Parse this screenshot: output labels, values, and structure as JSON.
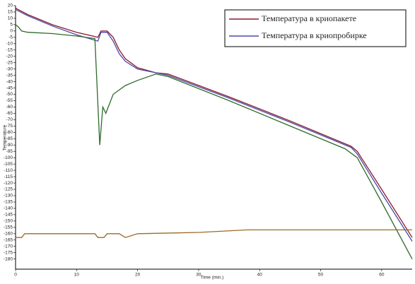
{
  "chart_data": {
    "type": "line",
    "x_label": "Time (min.)",
    "y_label": "Temperature",
    "xlim": [
      0,
      65
    ],
    "xticks": [
      0,
      10,
      20,
      30,
      40,
      50,
      60
    ],
    "ylim": [
      -188,
      20
    ],
    "yticks": [
      20,
      15,
      10,
      5,
      0,
      -5,
      -10,
      -15,
      -20,
      -25,
      -30,
      -35,
      -40,
      -45,
      -50,
      -55,
      -60,
      -65,
      -70,
      -75,
      -80,
      -85,
      -90,
      -95,
      -100,
      -105,
      -110,
      -115,
      -120,
      -125,
      -130,
      -135,
      -140,
      -145,
      -150,
      -155,
      -160,
      -165,
      -170,
      -175,
      -180
    ],
    "legend": "upper right",
    "series": [
      {
        "name": "Температура в криопакете",
        "color": "#8b1a2e",
        "x": [
          0,
          2,
          6,
          10,
          13.5,
          14,
          15,
          16,
          17,
          18,
          20,
          23,
          25,
          35,
          45,
          55,
          56,
          60,
          65
        ],
        "values": [
          18,
          13,
          5,
          -1,
          -5,
          0,
          0,
          -5,
          -15,
          -22,
          -29,
          -33,
          -34,
          -52,
          -71,
          -91,
          -95,
          -125,
          -163
        ]
      },
      {
        "name": "Температура в криопробирке",
        "color": "#4a4aa8",
        "x": [
          0,
          2,
          6,
          10,
          13.5,
          14,
          15,
          16,
          17,
          18,
          20,
          23,
          25,
          35,
          45,
          55,
          56,
          60,
          65
        ],
        "values": [
          17,
          12,
          4,
          -3,
          -8,
          -1,
          -1,
          -8,
          -18,
          -24,
          -30,
          -33,
          -35,
          -53,
          -72,
          -92,
          -97,
          -128,
          -166
        ]
      },
      {
        "color": "#2e6b2a",
        "x": [
          0,
          0.5,
          1,
          2,
          6,
          10,
          13,
          13.8,
          14.3,
          14.8,
          16,
          18,
          20,
          23,
          25,
          35,
          45,
          54,
          56,
          60,
          65
        ],
        "values": [
          5,
          3,
          0,
          -1,
          -2,
          -4,
          -6,
          -90,
          -60,
          -65,
          -50,
          -43,
          -39,
          -34,
          -36,
          -55,
          -75,
          -93,
          -100,
          -135,
          -180
        ]
      },
      {
        "color": "#9a6a2a",
        "x": [
          0,
          1,
          1.5,
          5,
          13,
          13.5,
          14.5,
          15,
          17,
          18,
          20,
          30,
          38,
          40,
          50,
          65
        ],
        "values": [
          -163,
          -163,
          -160,
          -160,
          -160,
          -163,
          -163,
          -160,
          -160,
          -163,
          -160,
          -159,
          -157,
          -157,
          -157,
          -157
        ]
      }
    ]
  }
}
